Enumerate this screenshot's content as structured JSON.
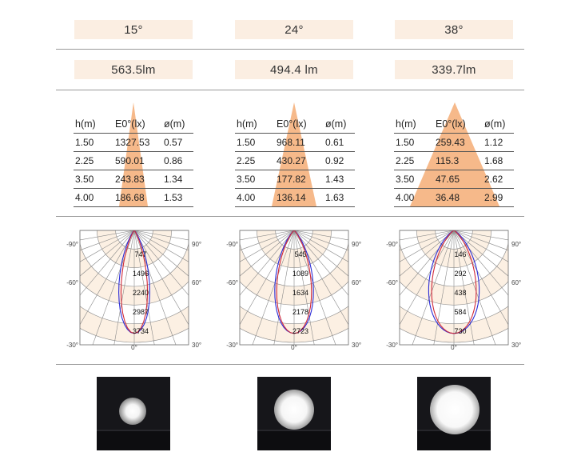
{
  "columns": [
    {
      "angle": "15°",
      "lumens": "563.5lm",
      "table": {
        "headers": [
          "h(m)",
          "E0°(lx)",
          "ø(m)"
        ],
        "rows": [
          [
            "1.50",
            "1327.53",
            "0.57"
          ],
          [
            "2.25",
            "590.01",
            "0.86"
          ],
          [
            "3.50",
            "243.83",
            "1.34"
          ],
          [
            "4.00",
            "186.68",
            "1.53"
          ]
        ]
      },
      "polar": {
        "ring_labels": [
          "747",
          "1496",
          "2240",
          "2987",
          "3734"
        ],
        "angle_labels": {
          "left90": "-90°",
          "right90": "90°",
          "left60": "-60°",
          "right60": "60°",
          "left30": "-30°",
          "center": "0°",
          "right30": "30°"
        }
      },
      "beam_image": "spot-15"
    },
    {
      "angle": "24°",
      "lumens": "494.4 lm",
      "table": {
        "headers": [
          "h(m)",
          "E0°(lx)",
          "ø(m)"
        ],
        "rows": [
          [
            "1.50",
            "968.11",
            "0.61"
          ],
          [
            "2.25",
            "430.27",
            "0.92"
          ],
          [
            "3.50",
            "177.82",
            "1.43"
          ],
          [
            "4.00",
            "136.14",
            "1.63"
          ]
        ]
      },
      "polar": {
        "ring_labels": [
          "545",
          "1089",
          "1634",
          "2178",
          "2723"
        ],
        "angle_labels": {
          "left90": "-90°",
          "right90": "90°",
          "left60": "-60°",
          "right60": "60°",
          "left30": "-30°",
          "center": "0°",
          "right30": "30°"
        }
      },
      "beam_image": "spot-24"
    },
    {
      "angle": "38°",
      "lumens": "339.7lm",
      "table": {
        "headers": [
          "h(m)",
          "E0°(lx)",
          "ø(m)"
        ],
        "rows": [
          [
            "1.50",
            "259.43",
            "1.12"
          ],
          [
            "2.25",
            "115.3",
            "1.68"
          ],
          [
            "3.50",
            "47.65",
            "2.62"
          ],
          [
            "4.00",
            "36.48",
            "2.99"
          ]
        ]
      },
      "polar": {
        "ring_labels": [
          "146",
          "292",
          "438",
          "584",
          "730"
        ],
        "angle_labels": {
          "left90": "-90°",
          "right90": "90°",
          "left60": "-60°",
          "right60": "60°",
          "left30": "-30°",
          "center": "0°",
          "right30": "30°"
        }
      },
      "beam_image": "spot-38"
    }
  ],
  "colors": {
    "pill_bg": "#fbeee2",
    "cone": "#f6b98a",
    "polar_band": "#fcf0e3",
    "curve_blue": "#2b2bd6",
    "curve_red": "#d02a3a"
  }
}
